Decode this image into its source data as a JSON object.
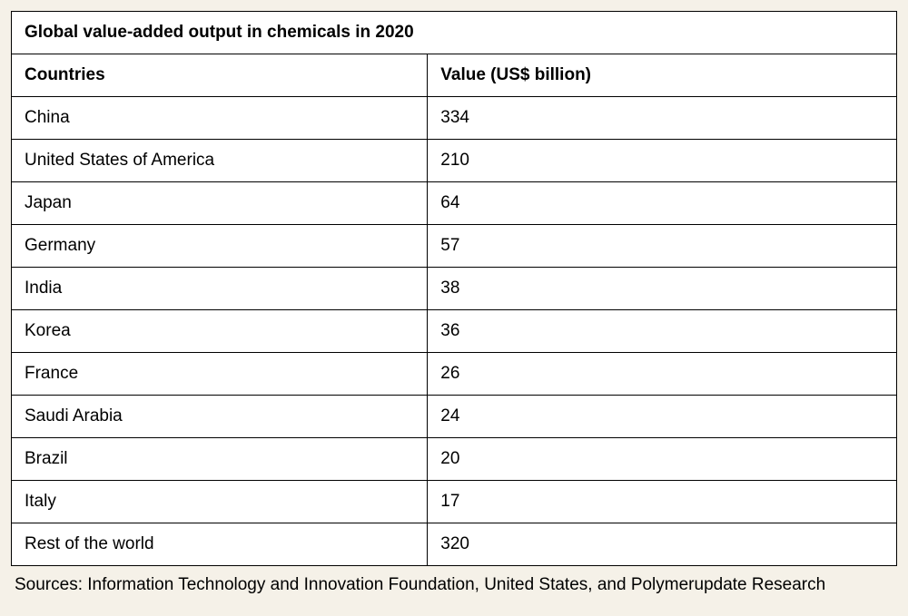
{
  "table": {
    "title": "Global value-added output in chemicals in 2020",
    "columns": [
      "Countries",
      "Value (US$ billion)"
    ],
    "rows": [
      [
        "China",
        "334"
      ],
      [
        "United States of America",
        "210"
      ],
      [
        "Japan",
        "64"
      ],
      [
        "Germany",
        "57"
      ],
      [
        "India",
        "38"
      ],
      [
        "Korea",
        "36"
      ],
      [
        "France",
        "26"
      ],
      [
        "Saudi Arabia",
        "24"
      ],
      [
        "Brazil",
        "20"
      ],
      [
        "Italy",
        "17"
      ],
      [
        "Rest of the world",
        "320"
      ]
    ],
    "column_widths": [
      "47%",
      "53%"
    ],
    "border_color": "#000000",
    "background_color": "#ffffff",
    "page_background_color": "#f5f1e8",
    "font_family": "Arial, Helvetica, sans-serif",
    "title_fontsize": 19,
    "header_fontsize": 19,
    "cell_fontsize": 19,
    "title_fontweight": "bold",
    "header_fontweight": "bold",
    "cell_fontweight": "normal",
    "text_color": "#000000"
  },
  "source": "Sources: Information Technology and Innovation Foundation, United States, and Polymerupdate Research"
}
